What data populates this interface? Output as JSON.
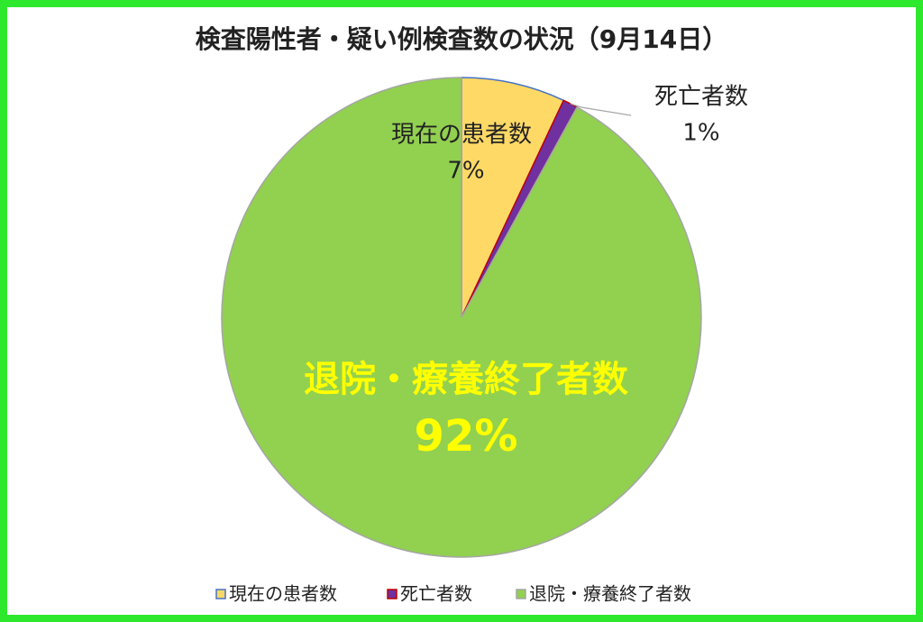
{
  "chart_data": {
    "type": "pie",
    "title": "検査陽性者・疑い例検査数の状況（9月14日）",
    "categories": [
      "現在の患者数",
      "死亡者数",
      "退院・療養終了者数"
    ],
    "values": [
      7,
      1,
      92
    ],
    "value_labels": [
      "7%",
      "1%",
      "92%"
    ],
    "colors": [
      "#ffd966",
      "#7030a0",
      "#92d050"
    ],
    "edge_colors": [
      "#4472c4",
      "#c00000",
      "#a5a5a5"
    ],
    "legend": "bottom"
  }
}
